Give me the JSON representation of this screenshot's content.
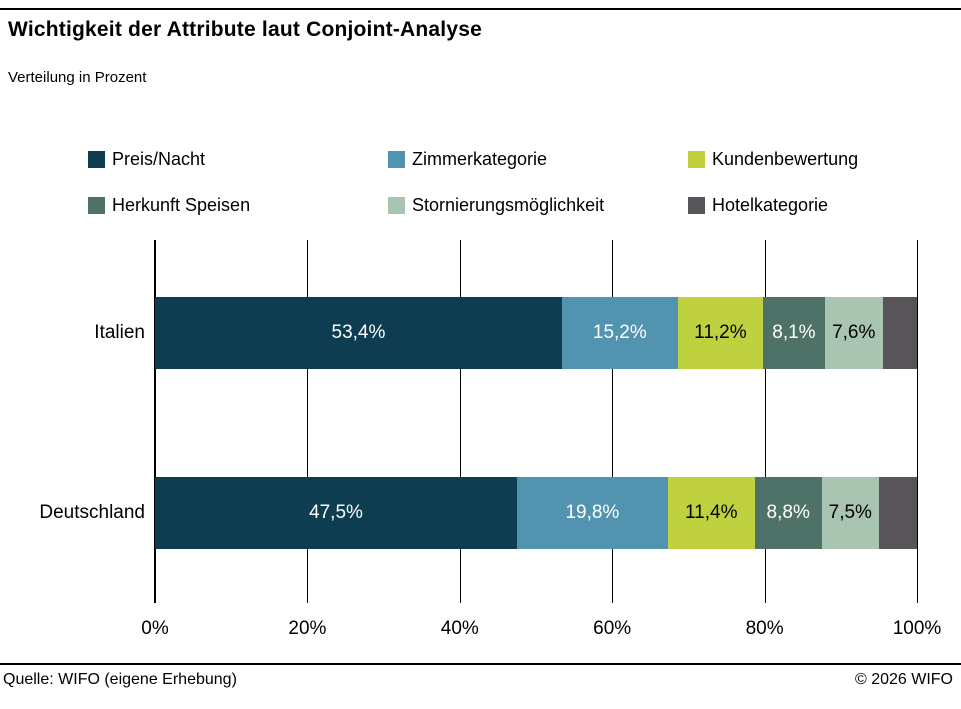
{
  "header": {
    "title": "Wichtigkeit der Attribute laut Conjoint-Analyse",
    "subtitle": "Verteilung in Prozent"
  },
  "chart_data": {
    "type": "bar",
    "orientation": "horizontal",
    "stacked": true,
    "grid": true,
    "legend_position": "top",
    "categories": [
      "Italien",
      "Deutschland"
    ],
    "series": [
      {
        "name": "Preis/Nacht",
        "color": "#0e3d52",
        "text_color": "#ffffff",
        "values": [
          53.4,
          47.5
        ],
        "labels": [
          "53,4%",
          "47,5%"
        ]
      },
      {
        "name": "Zimmerkategorie",
        "color": "#5294af",
        "text_color": "#ffffff",
        "values": [
          15.2,
          19.8
        ],
        "labels": [
          "15,2%",
          "19,8%"
        ]
      },
      {
        "name": "Kundenbewertung",
        "color": "#bfd13e",
        "text_color": "#000000",
        "values": [
          11.2,
          11.4
        ],
        "labels": [
          "11,2%",
          "11,4%"
        ]
      },
      {
        "name": "Herkunft Speisen",
        "color": "#4f7268",
        "text_color": "#ffffff",
        "values": [
          8.1,
          8.8
        ],
        "labels": [
          "8,1%",
          "8,8%"
        ]
      },
      {
        "name": "Stornierungsmöglichkeit",
        "color": "#a9c5b1",
        "text_color": "#000000",
        "values": [
          7.6,
          7.5
        ],
        "labels": [
          "7,6%",
          "7,5%"
        ]
      },
      {
        "name": "Hotelkategorie",
        "color": "#58555a",
        "text_color": "#ffffff",
        "values": [
          4.5,
          5.0
        ],
        "labels": [
          "",
          ""
        ]
      }
    ],
    "x_ticks": [
      "0%",
      "20%",
      "40%",
      "60%",
      "80%",
      "100%"
    ],
    "xlim": [
      0,
      100
    ]
  },
  "footer": {
    "source": "Quelle: WIFO (eigene Erhebung)",
    "copyright": "© 2026 WIFO"
  }
}
